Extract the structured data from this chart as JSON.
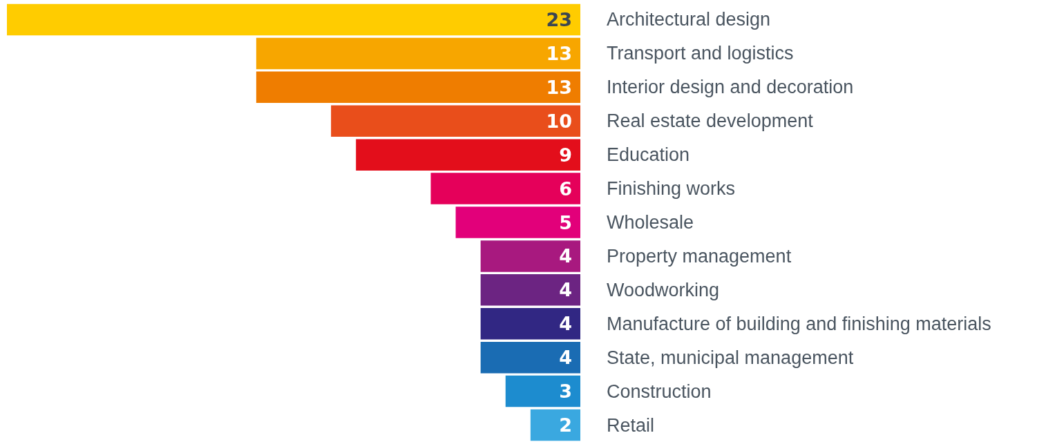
{
  "chart_data": {
    "type": "bar",
    "orientation": "horizontal",
    "data_labels": true,
    "categories": [
      "Architectural design",
      "Transport and logistics",
      "Interior design and decoration",
      "Real estate development",
      "Education",
      "Finishing works",
      "Wholesale",
      "Property management",
      "Woodworking",
      "Manufacture of building and finishing materials",
      "State, municipal management",
      "Construction",
      "Retail"
    ],
    "values": [
      23,
      13,
      13,
      10,
      9,
      6,
      5,
      4,
      4,
      4,
      4,
      3,
      2
    ],
    "colors": [
      "#ffcc00",
      "#f7a600",
      "#ef7d00",
      "#e94e1b",
      "#e30e1b",
      "#e5005a",
      "#e2007a",
      "#a8197f",
      "#6c2482",
      "#312783",
      "#1a6cb3",
      "#1d8ccf",
      "#3aa8e0"
    ]
  }
}
